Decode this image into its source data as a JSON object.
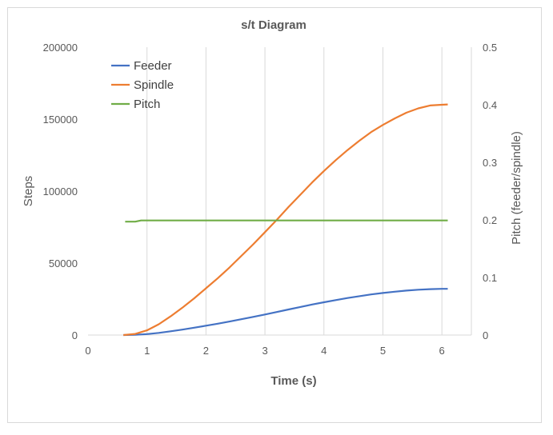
{
  "chart_data": {
    "type": "line",
    "title": "s/t Diagram",
    "xlabel": "Time (s)",
    "ylabel": "Steps",
    "y2label": "Pitch (feeder/spindle)",
    "xlim": [
      0,
      6.5
    ],
    "ylim": [
      0,
      200000
    ],
    "y2lim": [
      0,
      0.5
    ],
    "xticks": [
      "0",
      "1",
      "2",
      "3",
      "4",
      "5",
      "6"
    ],
    "xtick_values": [
      0,
      1,
      2,
      3,
      4,
      5,
      6
    ],
    "yticks": [
      "0",
      "50000",
      "100000",
      "150000",
      "200000"
    ],
    "ytick_values": [
      0,
      50000,
      100000,
      150000,
      200000
    ],
    "y2ticks": [
      "0",
      "0.1",
      "0.2",
      "0.3",
      "0.4",
      "0.5"
    ],
    "y2tick_values": [
      0,
      0.1,
      0.2,
      0.3,
      0.4,
      0.5
    ],
    "grid": "vertical",
    "legend_position": "top-left",
    "series": [
      {
        "name": "Feeder",
        "axis": "left",
        "color": "#4472c4",
        "x": [
          0.6,
          0.8,
          1.0,
          1.2,
          1.4,
          1.6,
          1.8,
          2.0,
          2.2,
          2.4,
          2.6,
          2.8,
          3.0,
          3.2,
          3.4,
          3.6,
          3.8,
          4.0,
          4.2,
          4.4,
          4.6,
          4.8,
          5.0,
          5.2,
          5.4,
          5.6,
          5.8,
          6.0,
          6.1
        ],
        "y": [
          0,
          160,
          660,
          1500,
          2600,
          3800,
          5100,
          6500,
          7900,
          9400,
          11000,
          12600,
          14300,
          16000,
          17800,
          19500,
          21200,
          22800,
          24300,
          25700,
          27000,
          28200,
          29200,
          30100,
          30900,
          31500,
          31900,
          32100,
          32100
        ]
      },
      {
        "name": "Spindle",
        "axis": "left",
        "color": "#ed7d31",
        "x": [
          0.6,
          0.8,
          1.0,
          1.2,
          1.4,
          1.6,
          1.8,
          2.0,
          2.2,
          2.4,
          2.6,
          2.8,
          3.0,
          3.2,
          3.4,
          3.6,
          3.8,
          4.0,
          4.2,
          4.4,
          4.6,
          4.8,
          5.0,
          5.2,
          5.4,
          5.6,
          5.8,
          6.0,
          6.1
        ],
        "y": [
          0,
          800,
          3300,
          7500,
          13000,
          19000,
          25500,
          32500,
          39500,
          47000,
          55000,
          63000,
          71500,
          80000,
          89000,
          97500,
          106000,
          114000,
          121500,
          128500,
          135000,
          141000,
          146000,
          150500,
          154500,
          157500,
          159500,
          160000,
          160200
        ]
      },
      {
        "name": "Pitch",
        "axis": "right",
        "color": "#70ad47",
        "x": [
          0.63,
          0.8,
          0.9,
          1.5,
          2.0,
          3.0,
          4.0,
          5.0,
          6.1
        ],
        "y": [
          0.197,
          0.197,
          0.199,
          0.199,
          0.199,
          0.199,
          0.199,
          0.199,
          0.199
        ]
      }
    ]
  }
}
